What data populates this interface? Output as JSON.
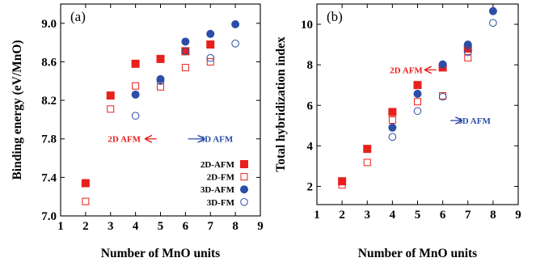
{
  "chart_data": [
    {
      "type": "scatter",
      "panel_label": "(a)",
      "xlabel": "Number of MnO units",
      "ylabel": "Binding energy (eV/MnO)",
      "xlim": [
        1,
        9
      ],
      "ylim": [
        7.0,
        9.2
      ],
      "x_ticks": [
        1,
        2,
        3,
        4,
        5,
        6,
        7,
        8,
        9
      ],
      "y_ticks": [
        7.0,
        7.4,
        7.8,
        8.2,
        8.6,
        9.0
      ],
      "y_tick_labels": [
        "7.0",
        "7.4",
        "7.8",
        "8.2",
        "8.6",
        "9.0"
      ],
      "legend_position": "bottom-right",
      "series": [
        {
          "name": "2D-AFM",
          "marker": "square-filled",
          "color": "#e8201c",
          "x": [
            2,
            3,
            4,
            5,
            6,
            7
          ],
          "y": [
            7.34,
            8.25,
            8.58,
            8.63,
            8.71,
            8.78
          ]
        },
        {
          "name": "2D-FM",
          "marker": "square-open",
          "color": "#e8201c",
          "x": [
            2,
            3,
            4,
            5,
            6,
            7
          ],
          "y": [
            7.15,
            8.11,
            8.35,
            8.34,
            8.54,
            8.6
          ]
        },
        {
          "name": "3D-AFM",
          "marker": "circle-filled",
          "color": "#2c4ea8",
          "x": [
            4,
            5,
            6,
            7,
            8
          ],
          "y": [
            8.26,
            8.42,
            8.81,
            8.89,
            8.99
          ]
        },
        {
          "name": "3D-FM",
          "marker": "circle-open",
          "color": "#2c4ea8",
          "x": [
            4,
            5,
            6,
            7,
            8
          ],
          "y": [
            8.04,
            8.4,
            8.71,
            8.64,
            8.79
          ]
        }
      ],
      "annotations": [
        {
          "text": "2D AFM",
          "color": "#e8201c",
          "x": 3.55,
          "y": 7.8,
          "arrow": "left",
          "arrow_from": 4.85,
          "arrow_to": 4.4
        },
        {
          "text": "3D AFM",
          "color": "#2c4ea8",
          "x": 7.25,
          "y": 7.8,
          "arrow": "right",
          "arrow_from": 6.1,
          "arrow_to": 6.75
        }
      ]
    },
    {
      "type": "scatter",
      "panel_label": "(b)",
      "xlabel": "Number of MnO units",
      "ylabel": "Total hybridization index",
      "xlim": [
        1,
        9
      ],
      "ylim": [
        1.1,
        11.0
      ],
      "x_ticks": [
        1,
        2,
        3,
        4,
        5,
        6,
        7,
        8,
        9
      ],
      "y_ticks": [
        2,
        4,
        6,
        8,
        10
      ],
      "y_tick_labels": [
        "2",
        "4",
        "6",
        "8",
        "10"
      ],
      "legend_position": "none",
      "series": [
        {
          "name": "2D-AFM",
          "marker": "square-filled",
          "color": "#e8201c",
          "x": [
            2,
            3,
            4,
            5,
            6,
            7
          ],
          "y": [
            2.25,
            3.85,
            5.67,
            7.0,
            7.87,
            8.8
          ]
        },
        {
          "name": "2D-FM",
          "marker": "square-open",
          "color": "#e8201c",
          "x": [
            2,
            3,
            4,
            5,
            6,
            7
          ],
          "y": [
            2.07,
            3.18,
            5.27,
            6.18,
            6.47,
            8.35
          ]
        },
        {
          "name": "3D-AFM",
          "marker": "circle-filled",
          "color": "#2c4ea8",
          "x": [
            4,
            5,
            6,
            7,
            8
          ],
          "y": [
            4.9,
            6.57,
            8.02,
            9.0,
            10.65
          ]
        },
        {
          "name": "3D-FM",
          "marker": "circle-open",
          "color": "#2c4ea8",
          "x": [
            4,
            5,
            6,
            7,
            8
          ],
          "y": [
            4.44,
            5.72,
            6.42,
            8.62,
            10.07
          ]
        }
      ],
      "annotations": [
        {
          "text": "2D AFM",
          "color": "#e8201c",
          "x": 4.55,
          "y": 7.75,
          "arrow": "left",
          "arrow_from": 5.75,
          "arrow_to": 5.3
        },
        {
          "text": "3D AFM",
          "color": "#2c4ea8",
          "x": 7.25,
          "y": 5.25,
          "arrow": "right",
          "arrow_from": 6.3,
          "arrow_to": 6.75
        }
      ]
    }
  ]
}
